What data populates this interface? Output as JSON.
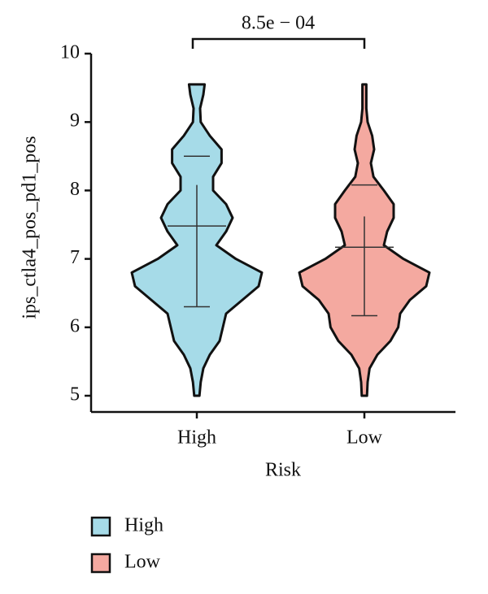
{
  "chart_data": {
    "type": "violin",
    "ylabel": "ips_ctla4_pos_pd1_pos",
    "xlabel": "Risk",
    "categories": [
      "High",
      "Low"
    ],
    "annotation": "8.5e − 04",
    "ylim": [
      5,
      10
    ],
    "yticks": [
      5,
      6,
      7,
      8,
      9,
      10
    ],
    "density_y": [
      5.0,
      5.2,
      5.4,
      5.6,
      5.8,
      6.0,
      6.2,
      6.4,
      6.6,
      6.8,
      7.0,
      7.2,
      7.4,
      7.6,
      7.8,
      8.0,
      8.2,
      8.4,
      8.6,
      8.8,
      9.0,
      9.2,
      9.4,
      9.55
    ],
    "series": [
      {
        "name": "High",
        "color": "#a6dbe8",
        "density": [
          0.04,
          0.06,
          0.1,
          0.2,
          0.35,
          0.4,
          0.45,
          0.7,
          0.95,
          1.0,
          0.6,
          0.3,
          0.45,
          0.55,
          0.45,
          0.25,
          0.25,
          0.38,
          0.38,
          0.2,
          0.06,
          0.05,
          0.1,
          0.12
        ],
        "median": 7.48,
        "quantiles": [
          6.3,
          8.5
        ],
        "range": [
          6.3,
          8.08
        ]
      },
      {
        "name": "Low",
        "color": "#f4a9a0",
        "density": [
          0.04,
          0.05,
          0.08,
          0.2,
          0.4,
          0.52,
          0.55,
          0.7,
          0.95,
          1.0,
          0.6,
          0.3,
          0.35,
          0.45,
          0.45,
          0.3,
          0.14,
          0.1,
          0.15,
          0.12,
          0.05,
          0.03,
          0.03,
          0.03
        ],
        "median": 7.17,
        "quantiles": [
          6.17,
          8.08
        ],
        "range": [
          6.17,
          7.62
        ]
      }
    ]
  }
}
